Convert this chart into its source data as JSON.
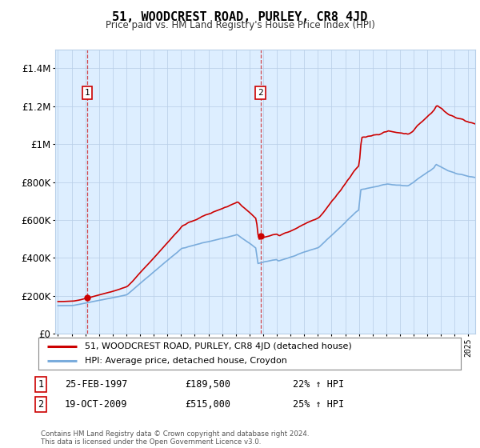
{
  "title": "51, WOODCREST ROAD, PURLEY, CR8 4JD",
  "subtitle": "Price paid vs. HM Land Registry's House Price Index (HPI)",
  "sale1_date": "25-FEB-1997",
  "sale1_price": 189500,
  "sale1_hpi": "22% ↑ HPI",
  "sale1_label": "1",
  "sale2_date": "19-OCT-2009",
  "sale2_price": 515000,
  "sale2_hpi": "25% ↑ HPI",
  "sale2_label": "2",
  "legend_line1": "51, WOODCREST ROAD, PURLEY, CR8 4JD (detached house)",
  "legend_line2": "HPI: Average price, detached house, Croydon",
  "footer": "Contains HM Land Registry data © Crown copyright and database right 2024.\nThis data is licensed under the Open Government Licence v3.0.",
  "line_color_sold": "#cc0000",
  "line_color_hpi": "#7aacdc",
  "plot_bg": "#ddeeff",
  "marker_color": "#cc0000",
  "dashed_line_color": "#cc0000",
  "ylabel_values": [
    "£0",
    "£200K",
    "£400K",
    "£600K",
    "£800K",
    "£1M",
    "£1.2M",
    "£1.4M"
  ],
  "ylim": [
    0,
    1500000
  ],
  "xlim_start": 1994.8,
  "xlim_end": 2025.5
}
